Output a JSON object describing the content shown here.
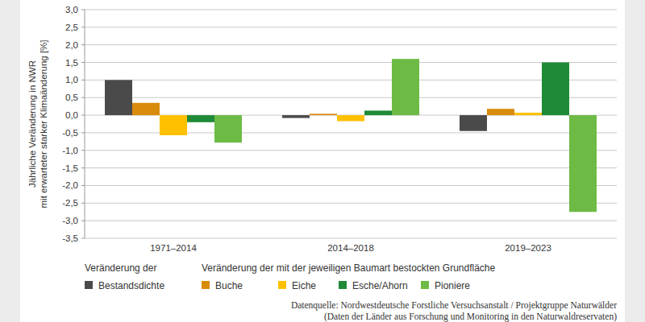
{
  "chart_data": {
    "type": "bar",
    "ylabel": [
      "Jährliche Veränderung in NWR",
      "mit erwarteter starker Klimaänderung [%]"
    ],
    "categories": [
      "1971–2014",
      "2014–2018",
      "2019–2023"
    ],
    "series": [
      {
        "name": "Bestandsdichte",
        "color": "#4a4a4a",
        "values": [
          1.0,
          -0.08,
          -0.45
        ]
      },
      {
        "name": "Buche",
        "color": "#d98b0b",
        "values": [
          0.35,
          0.04,
          0.18
        ]
      },
      {
        "name": "Eiche",
        "color": "#ffc000",
        "values": [
          -0.57,
          -0.17,
          0.07
        ]
      },
      {
        "name": "Esche/Ahorn",
        "color": "#1f8a37",
        "values": [
          -0.2,
          0.13,
          1.5
        ]
      },
      {
        "name": "Pioniere",
        "color": "#6dbb45",
        "values": [
          -0.78,
          1.6,
          -2.75
        ]
      }
    ],
    "ylim": [
      -3.5,
      3.0
    ],
    "yticks": [
      {
        "value": 3.0,
        "label": "3,0"
      },
      {
        "value": 2.5,
        "label": "2,5"
      },
      {
        "value": 2.0,
        "label": "2,0"
      },
      {
        "value": 1.5,
        "label": "1,5"
      },
      {
        "value": 1.0,
        "label": "1,0"
      },
      {
        "value": 0.5,
        "label": "0,5"
      },
      {
        "value": 0.0,
        "label": "0,0"
      },
      {
        "value": -0.5,
        "label": "-0,5"
      },
      {
        "value": -1.0,
        "label": "-1,0"
      },
      {
        "value": -1.5,
        "label": "-1,5"
      },
      {
        "value": -2.0,
        "label": "-2,0"
      },
      {
        "value": -2.5,
        "label": "-2,5"
      },
      {
        "value": -3.0,
        "label": "-3,0"
      },
      {
        "value": -3.5,
        "label": "-3,5"
      }
    ],
    "grid": true,
    "legend": "bottom",
    "legend_titles": [
      "Veränderung der",
      "Veränderung der mit der jeweiligen Baumart bestockten Grundfläche"
    ],
    "source": [
      "Datenquelle: Nordwestdeutsche Forstliche Versuchsanstalt / Projektgruppe Naturwälder",
      "(Daten der Länder aus Forschung und Monitoring in den Naturwaldreservaten)"
    ]
  }
}
